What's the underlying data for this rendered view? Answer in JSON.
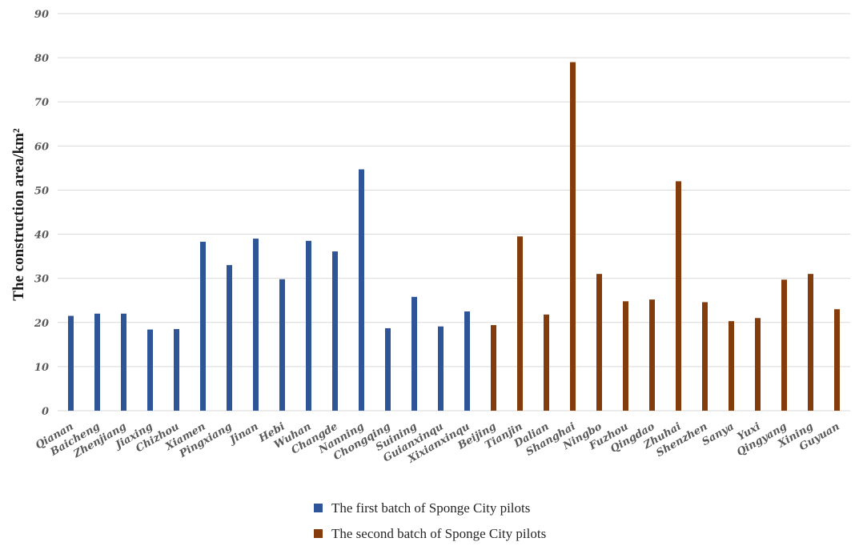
{
  "chart_data": {
    "type": "bar",
    "ylabel": "The construction area/km²",
    "xlabel": "",
    "ylim": [
      0,
      90
    ],
    "yticks": [
      0,
      10,
      20,
      30,
      40,
      50,
      60,
      70,
      80,
      90
    ],
    "grid": true,
    "legend_position": "bottom",
    "colors": {
      "first": "#2e5597",
      "second": "#843c0c"
    },
    "series": [
      {
        "name": "The first batch of Sponge City pilots",
        "key": "first"
      },
      {
        "name": "The second batch of Sponge City pilots",
        "key": "second"
      }
    ],
    "bars": [
      {
        "category": "Qianan",
        "value": 21.5,
        "series": "first"
      },
      {
        "category": "Baicheng",
        "value": 22,
        "series": "first"
      },
      {
        "category": "Zhenjiang",
        "value": 22,
        "series": "first"
      },
      {
        "category": "Jiaxing",
        "value": 18.4,
        "series": "first"
      },
      {
        "category": "Chizhou",
        "value": 18.5,
        "series": "first"
      },
      {
        "category": "Xiamen",
        "value": 38.3,
        "series": "first"
      },
      {
        "category": "Pingxiang",
        "value": 33,
        "series": "first"
      },
      {
        "category": "Jinan",
        "value": 39,
        "series": "first"
      },
      {
        "category": "Hebi",
        "value": 29.8,
        "series": "first"
      },
      {
        "category": "Wuhan",
        "value": 38.5,
        "series": "first"
      },
      {
        "category": "Changde",
        "value": 36.1,
        "series": "first"
      },
      {
        "category": "Nanning",
        "value": 54.7,
        "series": "first"
      },
      {
        "category": "Chongqing",
        "value": 18.7,
        "series": "first"
      },
      {
        "category": "Suining",
        "value": 25.8,
        "series": "first"
      },
      {
        "category": "Guianxinqu",
        "value": 19.1,
        "series": "first"
      },
      {
        "category": "Xixianxinqu",
        "value": 22.5,
        "series": "first"
      },
      {
        "category": "Beijing",
        "value": 19.4,
        "series": "second"
      },
      {
        "category": "Tianjin",
        "value": 39.5,
        "series": "second"
      },
      {
        "category": "Dalian",
        "value": 21.8,
        "series": "second"
      },
      {
        "category": "Shanghai",
        "value": 79,
        "series": "second"
      },
      {
        "category": "Ningbo",
        "value": 31,
        "series": "second"
      },
      {
        "category": "Fuzhou",
        "value": 24.8,
        "series": "second"
      },
      {
        "category": "Qingdao",
        "value": 25.2,
        "series": "second"
      },
      {
        "category": "Zhuhai",
        "value": 52,
        "series": "second"
      },
      {
        "category": "Shenzhen",
        "value": 24.6,
        "series": "second"
      },
      {
        "category": "Sanya",
        "value": 20.3,
        "series": "second"
      },
      {
        "category": "Yuxi",
        "value": 21,
        "series": "second"
      },
      {
        "category": "Qingyang",
        "value": 29.7,
        "series": "second"
      },
      {
        "category": "Xining",
        "value": 31,
        "series": "second"
      },
      {
        "category": "Guyuan",
        "value": 23,
        "series": "second"
      }
    ]
  }
}
